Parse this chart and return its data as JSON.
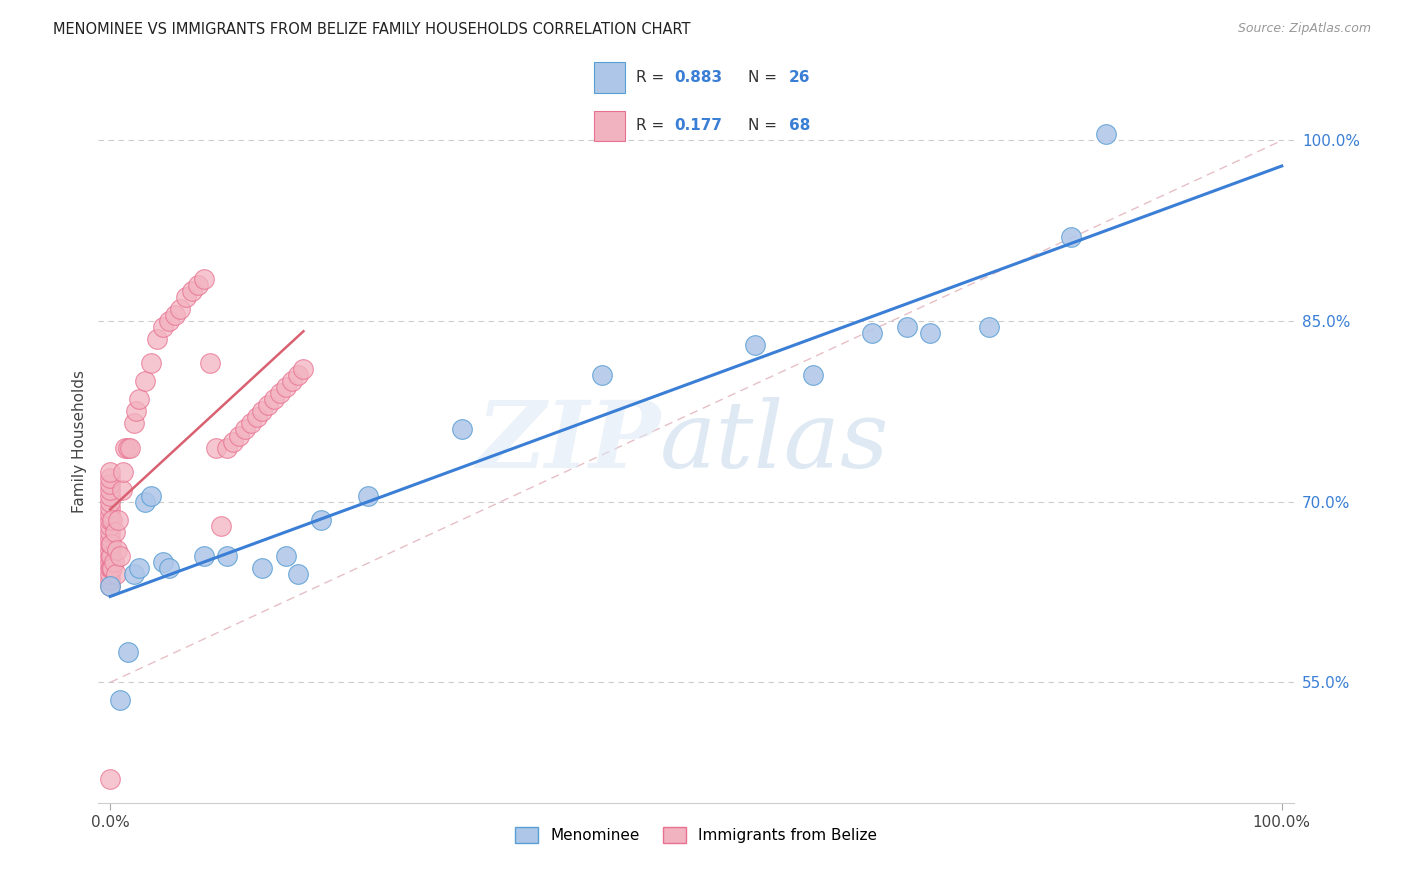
{
  "title": "MENOMINEE VS IMMIGRANTS FROM BELIZE FAMILY HOUSEHOLDS CORRELATION CHART",
  "source": "Source: ZipAtlas.com",
  "ylabel": "Family Households",
  "legend_label_1": "Menominee",
  "legend_label_2": "Immigrants from Belize",
  "R1": 0.883,
  "N1": 26,
  "R2": 0.177,
  "N2": 68,
  "color_blue": "#aec6e8",
  "color_pink": "#f2b3c0",
  "color_blue_dark": "#5a9fd4",
  "color_pink_dark": "#e87090",
  "color_line_blue": "#3a7fd5",
  "color_line_pink": "#d96070",
  "color_diag": "#e0b0b8",
  "menominee_x": [
    0.0,
    0.8,
    1.5,
    2.0,
    2.5,
    3.0,
    3.5,
    4.5,
    5.0,
    8.0,
    10.0,
    13.0,
    15.0,
    16.0,
    18.0,
    22.0,
    30.0,
    42.0,
    55.0,
    60.0,
    65.0,
    68.0,
    70.0,
    75.0,
    82.0,
    85.0
  ],
  "menominee_y": [
    63.0,
    53.5,
    57.5,
    64.0,
    64.5,
    70.0,
    70.5,
    65.0,
    64.5,
    65.5,
    65.5,
    64.5,
    65.5,
    64.0,
    68.5,
    70.5,
    76.0,
    80.5,
    83.0,
    80.5,
    84.0,
    84.5,
    84.0,
    84.5,
    92.0,
    100.5
  ],
  "belize_x": [
    0.0,
    0.0,
    0.0,
    0.0,
    0.0,
    0.0,
    0.0,
    0.0,
    0.0,
    0.0,
    0.0,
    0.0,
    0.0,
    0.0,
    0.0,
    0.0,
    0.0,
    0.0,
    0.0,
    0.0,
    0.0,
    0.1,
    0.1,
    0.1,
    0.2,
    0.2,
    0.3,
    0.4,
    0.5,
    0.6,
    0.7,
    0.8,
    1.0,
    1.1,
    1.3,
    1.5,
    1.7,
    2.0,
    2.2,
    2.5,
    3.0,
    3.5,
    4.0,
    4.5,
    5.0,
    5.5,
    6.0,
    6.5,
    7.0,
    7.5,
    8.0,
    8.5,
    9.0,
    9.5,
    10.0,
    10.5,
    11.0,
    11.5,
    12.0,
    12.5,
    13.0,
    13.5,
    14.0,
    14.5,
    15.0,
    15.5,
    16.0,
    16.5
  ],
  "belize_y": [
    47.0,
    63.0,
    63.5,
    64.0,
    64.5,
    65.0,
    65.5,
    66.0,
    66.5,
    67.0,
    67.5,
    68.0,
    68.5,
    69.0,
    69.5,
    70.0,
    70.5,
    71.0,
    71.5,
    72.0,
    72.5,
    64.5,
    65.5,
    66.5,
    64.5,
    68.5,
    65.0,
    67.5,
    64.0,
    66.0,
    68.5,
    65.5,
    71.0,
    72.5,
    74.5,
    74.5,
    74.5,
    76.5,
    77.5,
    78.5,
    80.0,
    81.5,
    83.5,
    84.5,
    85.0,
    85.5,
    86.0,
    87.0,
    87.5,
    88.0,
    88.5,
    81.5,
    74.5,
    68.0,
    74.5,
    75.0,
    75.5,
    76.0,
    76.5,
    77.0,
    77.5,
    78.0,
    78.5,
    79.0,
    79.5,
    80.0,
    80.5,
    81.0
  ],
  "xlim": [
    -1,
    101
  ],
  "ylim": [
    45,
    105
  ],
  "y_ticks": [
    55.0,
    70.0,
    85.0,
    100.0
  ],
  "watermark_zip": "ZIP",
  "watermark_atlas": "atlas",
  "background_color": "#ffffff"
}
